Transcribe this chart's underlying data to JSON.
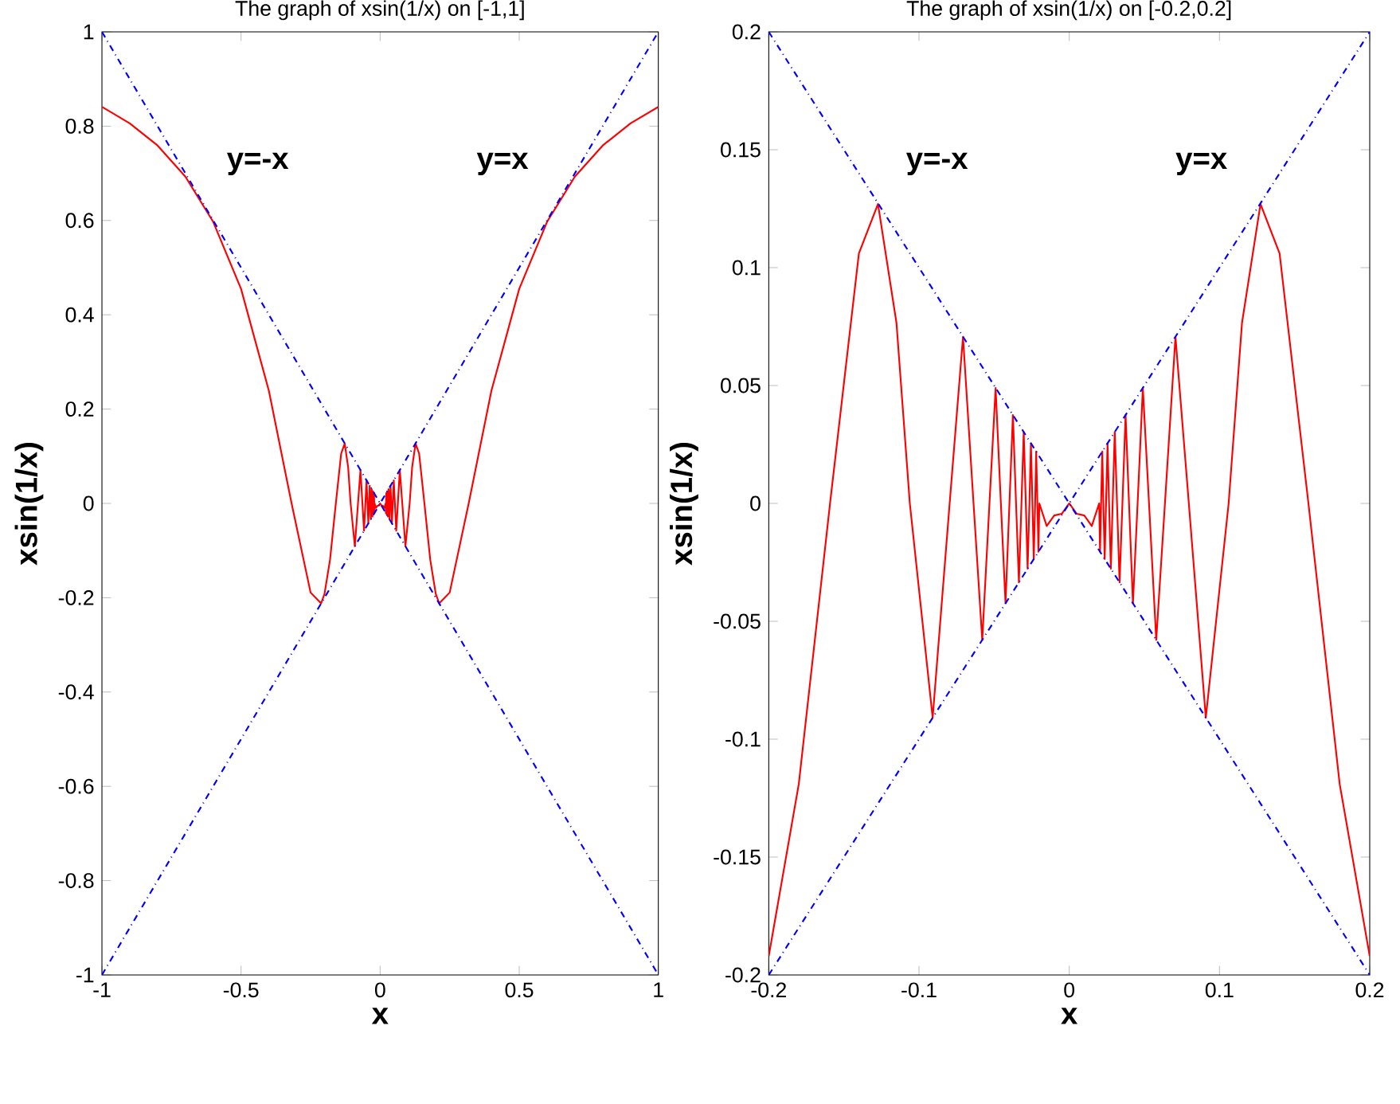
{
  "chart_data": [
    {
      "type": "line",
      "title": "The graph of xsin(1/x) on [-1,1]",
      "xlabel": "x",
      "ylabel": "xsin(1/x)",
      "xlim": [
        -1,
        1
      ],
      "ylim": [
        -1,
        1
      ],
      "xticks": [
        -1,
        -0.5,
        0,
        0.5,
        1
      ],
      "yticks": [
        -1,
        -0.8,
        -0.6,
        -0.4,
        -0.2,
        0,
        0.2,
        0.4,
        0.6,
        0.8,
        1
      ],
      "marker": "none",
      "grid": false,
      "legend": false,
      "series": [
        {
          "color": "#ff0000",
          "line_style": "solid",
          "x": [
            -1,
            -0.9,
            -0.8,
            -0.7,
            -0.6,
            -0.5,
            -0.4,
            -0.3183,
            -0.25,
            -0.2122,
            -0.2,
            -0.18,
            -0.1592,
            -0.14,
            -0.1273,
            -0.115,
            -0.1061,
            -0.0909,
            -0.0796,
            -0.0707,
            -0.0637,
            -0.0579,
            -0.0531,
            -0.049,
            -0.0455,
            -0.0424,
            -0.0398,
            -0.0375,
            -0.0354,
            -0.0335,
            -0.0318,
            -0.0303,
            -0.0289,
            -0.0277,
            -0.0265,
            -0.0255,
            -0.0245,
            -0.0236,
            -0.0227,
            -0.022,
            -0.0212,
            -0.0205,
            -0.0199,
            -0.015,
            -0.01,
            -0.005,
            0,
            0.005,
            0.01,
            0.015,
            0.0199,
            0.0205,
            0.0212,
            0.022,
            0.0227,
            0.0236,
            0.0245,
            0.0255,
            0.0265,
            0.0277,
            0.0289,
            0.0303,
            0.0318,
            0.0335,
            0.0354,
            0.0375,
            0.0398,
            0.0424,
            0.0455,
            0.049,
            0.0531,
            0.0579,
            0.0637,
            0.0707,
            0.0796,
            0.0909,
            0.1061,
            0.115,
            0.1273,
            0.14,
            0.1592,
            0.18,
            0.2,
            0.2122,
            0.25,
            0.3183,
            0.4,
            0.5,
            0.6,
            0.7,
            0.8,
            0.9,
            1
          ],
          "values": [
            0.841,
            0.806,
            0.759,
            0.693,
            0.597,
            0.455,
            0.239,
            0,
            -0.189,
            -0.212,
            -0.192,
            -0.119,
            0,
            0.106,
            0.127,
            0.0766,
            0,
            -0.0909,
            0,
            0.0707,
            0,
            -0.0579,
            0,
            0.049,
            0,
            -0.0424,
            0,
            0.0375,
            0,
            -0.0335,
            0,
            0.0303,
            0,
            -0.0277,
            0,
            0.0255,
            0,
            -0.0236,
            0,
            0.022,
            0,
            -0.0205,
            0,
            -0.0096,
            -0.0051,
            -0.0044,
            0,
            -0.0044,
            -0.0051,
            -0.0096,
            0,
            -0.0205,
            0,
            0.022,
            0,
            -0.0236,
            0,
            0.0255,
            0,
            -0.0277,
            0,
            0.0303,
            0,
            -0.0335,
            0,
            0.0375,
            0,
            -0.0424,
            0,
            0.049,
            0,
            -0.0579,
            0,
            0.0707,
            0,
            -0.0909,
            0,
            0.0766,
            0.127,
            0.106,
            0,
            -0.119,
            -0.192,
            -0.212,
            -0.189,
            0,
            0.239,
            0.455,
            0.597,
            0.693,
            0.759,
            0.806,
            0.841
          ]
        },
        {
          "color": "#0000ff",
          "line_style": "dashdot",
          "x": [
            -1,
            1
          ],
          "values": [
            -1,
            1
          ]
        },
        {
          "color": "#0000ff",
          "line_style": "dashdot",
          "x": [
            -1,
            1
          ],
          "values": [
            1,
            -1
          ]
        }
      ],
      "annotations": [
        "y=-x",
        "y=x"
      ]
    },
    {
      "type": "line",
      "title": "The graph of xsin(1/x) on [-0.2,0.2]",
      "xlabel": "x",
      "ylabel": "xsin(1/x)",
      "xlim": [
        -0.2,
        0.2
      ],
      "ylim": [
        -0.2,
        0.2
      ],
      "xticks": [
        -0.2,
        -0.1,
        0,
        0.1,
        0.2
      ],
      "yticks": [
        -0.2,
        -0.15,
        -0.1,
        -0.05,
        0,
        0.05,
        0.1,
        0.15,
        0.2
      ],
      "marker": "none",
      "grid": false,
      "legend": false,
      "series": [
        {
          "color": "#ff0000",
          "line_style": "solid",
          "x": [
            -0.2,
            -0.18,
            -0.1592,
            -0.14,
            -0.1273,
            -0.115,
            -0.1061,
            -0.0909,
            -0.0796,
            -0.0707,
            -0.0637,
            -0.0579,
            -0.0531,
            -0.049,
            -0.0455,
            -0.0424,
            -0.0398,
            -0.0375,
            -0.0354,
            -0.0335,
            -0.0318,
            -0.0303,
            -0.0289,
            -0.0277,
            -0.0265,
            -0.0255,
            -0.0245,
            -0.0236,
            -0.0227,
            -0.022,
            -0.0212,
            -0.0205,
            -0.0199,
            -0.015,
            -0.01,
            -0.005,
            0,
            0.005,
            0.01,
            0.015,
            0.0199,
            0.0205,
            0.0212,
            0.022,
            0.0227,
            0.0236,
            0.0245,
            0.0255,
            0.0265,
            0.0277,
            0.0289,
            0.0303,
            0.0318,
            0.0335,
            0.0354,
            0.0375,
            0.0398,
            0.0424,
            0.0455,
            0.049,
            0.0531,
            0.0579,
            0.0637,
            0.0707,
            0.0796,
            0.0909,
            0.1061,
            0.115,
            0.1273,
            0.14,
            0.1592,
            0.18,
            0.2
          ],
          "values": [
            -0.192,
            -0.119,
            0,
            0.106,
            0.127,
            0.0766,
            0,
            -0.0909,
            0,
            0.0707,
            0,
            -0.0579,
            0,
            0.049,
            0,
            -0.0424,
            0,
            0.0375,
            0,
            -0.0335,
            0,
            0.0303,
            0,
            -0.0277,
            0,
            0.0255,
            0,
            -0.0236,
            0,
            0.022,
            0,
            -0.0205,
            0,
            -0.0096,
            -0.0051,
            -0.0044,
            0,
            -0.0044,
            -0.0051,
            -0.0096,
            0,
            -0.0205,
            0,
            0.022,
            0,
            -0.0236,
            0,
            0.0255,
            0,
            -0.0277,
            0,
            0.0303,
            0,
            -0.0335,
            0,
            0.0375,
            0,
            -0.0424,
            0,
            0.049,
            0,
            -0.0579,
            0,
            0.0707,
            0,
            -0.0909,
            0,
            0.0766,
            0.127,
            0.106,
            0,
            -0.119,
            -0.192
          ]
        },
        {
          "color": "#0000ff",
          "line_style": "dashdot",
          "x": [
            -0.2,
            0.2
          ],
          "values": [
            -0.2,
            0.2
          ]
        },
        {
          "color": "#0000ff",
          "line_style": "dashdot",
          "x": [
            -0.2,
            0.2
          ],
          "values": [
            0.2,
            -0.2
          ]
        }
      ],
      "annotations": [
        "y=-x",
        "y=x"
      ]
    }
  ]
}
